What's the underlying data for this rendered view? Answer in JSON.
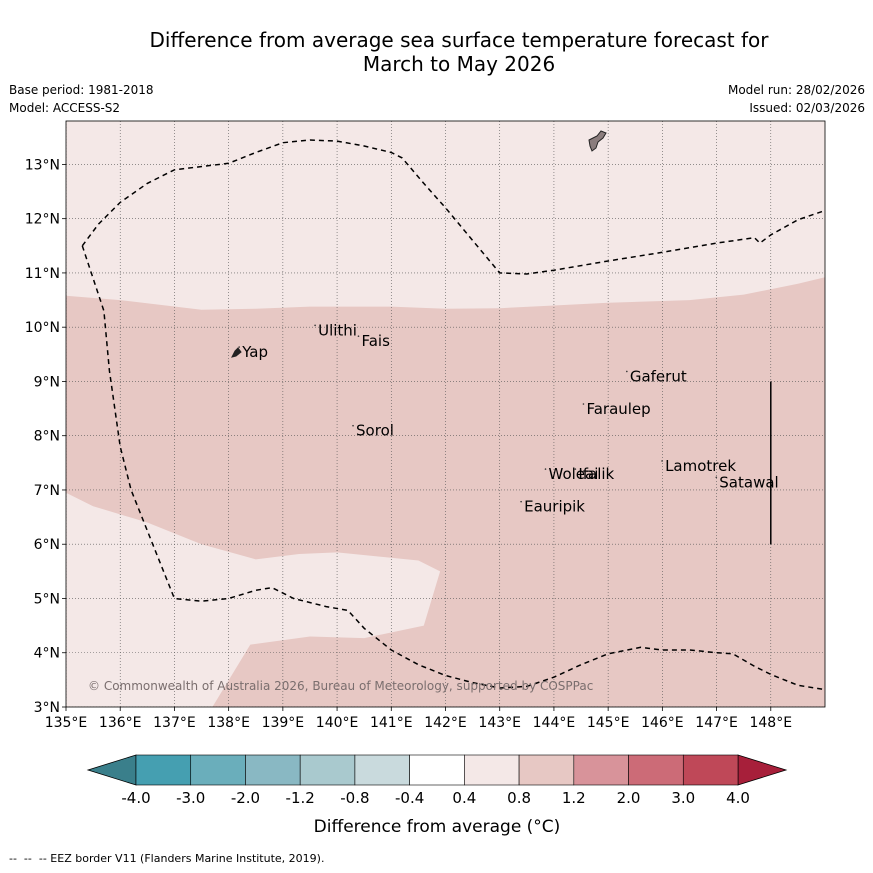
{
  "title_line1": "Difference from average sea surface temperature forecast for",
  "title_line2": "March to May 2026",
  "base_period": "Base period: 1981-2018",
  "model": "Model: ACCESS-S2",
  "model_run": "Model run: 28/02/2026",
  "issued": "Issued: 02/03/2026",
  "copyright": "© Commonwealth of Australia 2026, Bureau of Meteorology, supported by COSPPac",
  "footnote": "--  --  -- EEZ border V11 (Flanders Marine Institute, 2019).",
  "map": {
    "lon_range": [
      135,
      149
    ],
    "lat_range": [
      3,
      13.8
    ],
    "lon_ticks": [
      {
        "v": 135,
        "label": "135°E"
      },
      {
        "v": 136,
        "label": "136°E"
      },
      {
        "v": 137,
        "label": "137°E"
      },
      {
        "v": 138,
        "label": "138°E"
      },
      {
        "v": 139,
        "label": "139°E"
      },
      {
        "v": 140,
        "label": "140°E"
      },
      {
        "v": 141,
        "label": "141°E"
      },
      {
        "v": 142,
        "label": "142°E"
      },
      {
        "v": 143,
        "label": "143°E"
      },
      {
        "v": 144,
        "label": "144°E"
      },
      {
        "v": 145,
        "label": "145°E"
      },
      {
        "v": 146,
        "label": "146°E"
      },
      {
        "v": 147,
        "label": "147°E"
      },
      {
        "v": 148,
        "label": "148°E"
      }
    ],
    "lat_ticks": [
      {
        "v": 3,
        "label": "3°N"
      },
      {
        "v": 4,
        "label": "4°N"
      },
      {
        "v": 5,
        "label": "5°N"
      },
      {
        "v": 6,
        "label": "6°N"
      },
      {
        "v": 7,
        "label": "7°N"
      },
      {
        "v": 8,
        "label": "8°N"
      },
      {
        "v": 9,
        "label": "9°N"
      },
      {
        "v": 10,
        "label": "10°N"
      },
      {
        "v": 11,
        "label": "11°N"
      },
      {
        "v": 12,
        "label": "12°N"
      },
      {
        "v": 13,
        "label": "13°N"
      }
    ],
    "places": [
      {
        "name": "Yap",
        "lon": 138.25,
        "lat": 9.45
      },
      {
        "name": "Ulithi",
        "lon": 139.65,
        "lat": 9.85
      },
      {
        "name": "Fais",
        "lon": 140.45,
        "lat": 9.65
      },
      {
        "name": "Gaferut",
        "lon": 145.4,
        "lat": 9.0
      },
      {
        "name": "Faraulep",
        "lon": 144.6,
        "lat": 8.4
      },
      {
        "name": "Sorol",
        "lon": 140.35,
        "lat": 8.0
      },
      {
        "name": "Lamotrek",
        "lon": 146.05,
        "lat": 7.35
      },
      {
        "name": "Satawal",
        "lon": 147.05,
        "lat": 7.05
      },
      {
        "name": "Woleai",
        "lon": 143.9,
        "lat": 7.2
      },
      {
        "name": "Ifalik",
        "lon": 144.45,
        "lat": 7.2
      },
      {
        "name": "Eauripik",
        "lon": 143.45,
        "lat": 6.6
      }
    ],
    "anomaly_regions": [
      {
        "class": "0.4 to 0.8",
        "color": "#f4e8e7",
        "polygon": [
          [
            135,
            3
          ],
          [
            149,
            3
          ],
          [
            149,
            13.8
          ],
          [
            135,
            13.8
          ]
        ]
      },
      {
        "class": "0.8 to 1.2",
        "color": "#e7c8c4",
        "polygon": [
          [
            135,
            10.58
          ],
          [
            136,
            10.5
          ],
          [
            137.5,
            10.32
          ],
          [
            138.5,
            10.34
          ],
          [
            139.5,
            10.38
          ],
          [
            141,
            10.38
          ],
          [
            142,
            10.34
          ],
          [
            143,
            10.35
          ],
          [
            144,
            10.4
          ],
          [
            145,
            10.45
          ],
          [
            146.5,
            10.5
          ],
          [
            147.5,
            10.6
          ],
          [
            148.5,
            10.8
          ],
          [
            149,
            10.92
          ],
          [
            149,
            3
          ],
          [
            137.7,
            3
          ],
          [
            138.4,
            4.15
          ],
          [
            139.5,
            4.3
          ],
          [
            140.5,
            4.27
          ],
          [
            141.6,
            4.5
          ],
          [
            141.9,
            5.5
          ],
          [
            141.5,
            5.7
          ],
          [
            140,
            5.85
          ],
          [
            139.3,
            5.82
          ],
          [
            138.5,
            5.72
          ],
          [
            137.5,
            6.0
          ],
          [
            136.5,
            6.4
          ],
          [
            135.5,
            6.7
          ],
          [
            135,
            6.95
          ]
        ]
      }
    ],
    "eez_segments": [
      [
        [
          135.3,
          11.5
        ],
        [
          135.6,
          11.9
        ],
        [
          136,
          12.3
        ],
        [
          136.5,
          12.65
        ],
        [
          137,
          12.9
        ],
        [
          138,
          13.02
        ],
        [
          138.5,
          13.22
        ],
        [
          139,
          13.4
        ],
        [
          139.5,
          13.45
        ],
        [
          140,
          13.43
        ],
        [
          140.5,
          13.34
        ],
        [
          141,
          13.22
        ],
        [
          141.2,
          13.12
        ],
        [
          141.6,
          12.65
        ],
        [
          142,
          12.2
        ],
        [
          142.5,
          11.6
        ],
        [
          143,
          11.0
        ],
        [
          143.5,
          10.98
        ],
        [
          144,
          11.05
        ],
        [
          145,
          11.22
        ],
        [
          146,
          11.38
        ],
        [
          147,
          11.55
        ],
        [
          147.7,
          11.65
        ],
        [
          147.8,
          11.55
        ],
        [
          148,
          11.7
        ],
        [
          148.5,
          11.98
        ],
        [
          149,
          12.15
        ]
      ],
      [
        [
          135.3,
          11.5
        ],
        [
          135.7,
          10.3
        ],
        [
          135.8,
          9.2
        ],
        [
          136,
          7.8
        ],
        [
          136.2,
          7.0
        ],
        [
          136.6,
          6.0
        ],
        [
          137,
          5.0
        ],
        [
          137.5,
          4.95
        ],
        [
          138,
          5.0
        ],
        [
          138.5,
          5.15
        ],
        [
          138.8,
          5.2
        ],
        [
          139.2,
          5.0
        ],
        [
          139.8,
          4.85
        ],
        [
          140.2,
          4.78
        ],
        [
          140.5,
          4.45
        ],
        [
          141,
          4.05
        ],
        [
          141.5,
          3.78
        ],
        [
          142,
          3.58
        ],
        [
          142.5,
          3.45
        ],
        [
          143,
          3.35
        ],
        [
          143.5,
          3.38
        ],
        [
          144,
          3.55
        ],
        [
          144.5,
          3.78
        ],
        [
          145,
          3.98
        ],
        [
          145.6,
          4.1
        ],
        [
          146,
          4.05
        ],
        [
          146.5,
          4.05
        ],
        [
          147,
          4.0
        ],
        [
          147.3,
          3.98
        ],
        [
          147.7,
          3.75
        ],
        [
          148,
          3.6
        ],
        [
          148.5,
          3.4
        ],
        [
          149,
          3.32
        ]
      ]
    ],
    "vertical_line": {
      "lon": 148,
      "lat_from": 6.0,
      "lat_to": 9.0
    }
  },
  "colorbar": {
    "label": "Difference from average (°C)",
    "low_extend_color": "#3a7f8b",
    "high_extend_color": "#a71f3a",
    "bins": [
      "#459fb1",
      "#6aaebb",
      "#89b8c3",
      "#a9c9ce",
      "#c9dadd",
      "#ffffff",
      "#f4e8e7",
      "#e7c8c4",
      "#d8939a",
      "#cc6b77",
      "#bf4858"
    ],
    "tick_labels": [
      "-4.0",
      "-3.0",
      "-2.0",
      "-1.2",
      "-0.8",
      "-0.4",
      "0.4",
      "0.8",
      "1.2",
      "2.0",
      "3.0",
      "4.0"
    ]
  }
}
